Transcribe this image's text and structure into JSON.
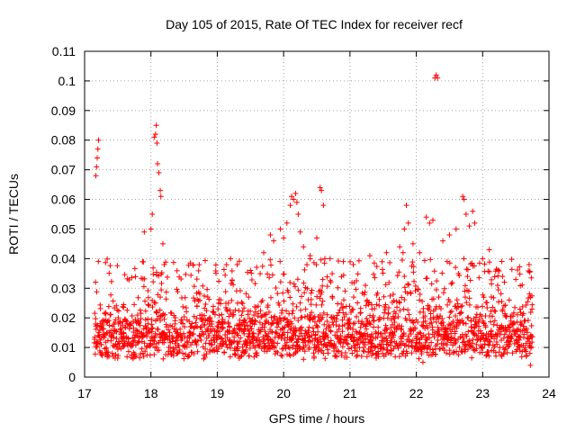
{
  "chart_data": {
    "type": "scatter",
    "title": "Day 105 of 2015, Rate Of TEC Index for receiver recf",
    "xlabel": "GPS time / hours",
    "ylabel": "ROTI / TECUs",
    "xlim": [
      17,
      24
    ],
    "ylim": [
      0,
      0.11
    ],
    "xticks": [
      "17",
      "18",
      "19",
      "20",
      "21",
      "22",
      "23",
      "24"
    ],
    "yticks": [
      "0",
      "0.01",
      "0.02",
      "0.03",
      "0.04",
      "0.05",
      "0.06",
      "0.07",
      "0.08",
      "0.09",
      "0.1",
      "0.11"
    ],
    "grid": true,
    "marker": "+",
    "marker_color": "#ff0000",
    "data_window": [
      17.15,
      23.75
    ],
    "sample_interval_hours": 0.0125,
    "series": [
      {
        "name": "ROTI",
        "generation": "approximate",
        "baseline_min": 0.006,
        "baseline_max": 0.028,
        "points": [
          [
            17.17,
            0.068
          ],
          [
            17.18,
            0.071
          ],
          [
            17.19,
            0.074
          ],
          [
            17.2,
            0.077
          ],
          [
            17.21,
            0.08
          ],
          [
            18.05,
            0.081
          ],
          [
            18.07,
            0.082
          ],
          [
            18.08,
            0.085
          ],
          [
            18.09,
            0.079
          ],
          [
            18.1,
            0.072
          ],
          [
            18.12,
            0.069
          ],
          [
            18.14,
            0.063
          ],
          [
            18.15,
            0.061
          ],
          [
            18.02,
            0.055
          ],
          [
            18.0,
            0.05
          ],
          [
            17.9,
            0.049
          ],
          [
            18.18,
            0.045
          ],
          [
            18.2,
            0.038
          ],
          [
            19.2,
            0.04
          ],
          [
            19.3,
            0.038
          ],
          [
            19.5,
            0.036
          ],
          [
            19.7,
            0.042
          ],
          [
            19.8,
            0.048
          ],
          [
            19.85,
            0.046
          ],
          [
            19.95,
            0.05
          ],
          [
            20.0,
            0.047
          ],
          [
            20.05,
            0.052
          ],
          [
            20.1,
            0.058
          ],
          [
            20.12,
            0.061
          ],
          [
            20.15,
            0.06
          ],
          [
            20.18,
            0.062
          ],
          [
            20.2,
            0.059
          ],
          [
            20.22,
            0.055
          ],
          [
            20.25,
            0.049
          ],
          [
            20.3,
            0.044
          ],
          [
            20.4,
            0.041
          ],
          [
            20.5,
            0.047
          ],
          [
            20.55,
            0.064
          ],
          [
            20.57,
            0.063
          ],
          [
            20.6,
            0.058
          ],
          [
            20.7,
            0.04
          ],
          [
            20.9,
            0.039
          ],
          [
            21.05,
            0.038
          ],
          [
            21.3,
            0.041
          ],
          [
            21.55,
            0.042
          ],
          [
            21.75,
            0.044
          ],
          [
            21.8,
            0.042
          ],
          [
            21.82,
            0.05
          ],
          [
            21.85,
            0.058
          ],
          [
            21.88,
            0.052
          ],
          [
            21.95,
            0.045
          ],
          [
            22.05,
            0.042
          ],
          [
            22.15,
            0.054
          ],
          [
            22.2,
            0.052
          ],
          [
            22.25,
            0.053
          ],
          [
            22.28,
            0.101
          ],
          [
            22.3,
            0.102
          ],
          [
            22.32,
            0.101
          ],
          [
            22.4,
            0.046
          ],
          [
            22.5,
            0.048
          ],
          [
            22.6,
            0.05
          ],
          [
            22.7,
            0.061
          ],
          [
            22.72,
            0.06
          ],
          [
            22.75,
            0.055
          ],
          [
            22.8,
            0.051
          ],
          [
            22.85,
            0.056
          ],
          [
            22.88,
            0.052
          ],
          [
            23.0,
            0.04
          ],
          [
            23.1,
            0.043
          ],
          [
            23.3,
            0.034
          ],
          [
            23.5,
            0.033
          ],
          [
            23.7,
            0.038
          ],
          [
            23.72,
            0.004
          ],
          [
            22.1,
            0.005
          ],
          [
            20.3,
            0.006
          ]
        ]
      }
    ]
  }
}
